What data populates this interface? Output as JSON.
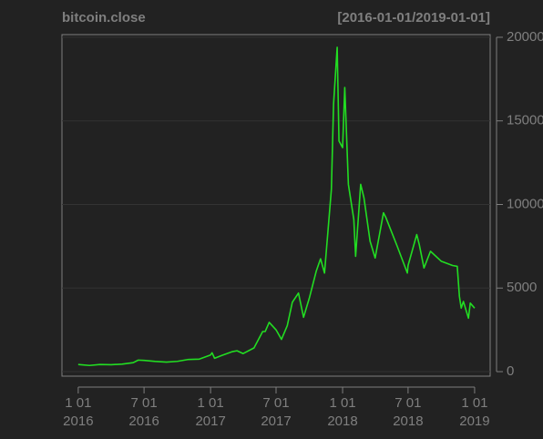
{
  "chart_data": {
    "type": "line",
    "title": "bitcoin.close",
    "subtitle": "[2016-01-01/2019-01-01]",
    "x": [
      "2016-01-01",
      "2016-02-01",
      "2016-03-01",
      "2016-04-01",
      "2016-05-01",
      "2016-06-01",
      "2016-06-15",
      "2016-07-01",
      "2016-08-01",
      "2016-09-01",
      "2016-10-01",
      "2016-11-01",
      "2016-12-01",
      "2017-01-01",
      "2017-01-05",
      "2017-01-12",
      "2017-02-01",
      "2017-03-01",
      "2017-03-15",
      "2017-04-01",
      "2017-05-01",
      "2017-05-25",
      "2017-06-01",
      "2017-06-12",
      "2017-07-01",
      "2017-07-16",
      "2017-08-01",
      "2017-08-15",
      "2017-09-01",
      "2017-09-15",
      "2017-10-01",
      "2017-10-20",
      "2017-11-01",
      "2017-11-12",
      "2017-12-01",
      "2017-12-07",
      "2017-12-17",
      "2017-12-22",
      "2018-01-01",
      "2018-01-07",
      "2018-01-17",
      "2018-02-01",
      "2018-02-06",
      "2018-02-20",
      "2018-03-01",
      "2018-03-18",
      "2018-04-01",
      "2018-04-24",
      "2018-05-01",
      "2018-06-01",
      "2018-06-29",
      "2018-07-01",
      "2018-07-25",
      "2018-08-01",
      "2018-08-14",
      "2018-09-01",
      "2018-10-01",
      "2018-11-01",
      "2018-11-14",
      "2018-11-20",
      "2018-11-25",
      "2018-12-01",
      "2018-12-15",
      "2018-12-20",
      "2019-01-01"
    ],
    "series": [
      {
        "name": "bitcoin.close",
        "color": "#22dd22",
        "values": [
          430,
          370,
          430,
          415,
          450,
          535,
          690,
          675,
          610,
          570,
          615,
          730,
          750,
          1000,
          1130,
          800,
          970,
          1190,
          1250,
          1080,
          1420,
          2400,
          2400,
          2950,
          2500,
          1930,
          2750,
          4150,
          4700,
          3250,
          4400,
          6000,
          6750,
          5900,
          10900,
          16000,
          19400,
          13800,
          13400,
          17000,
          11200,
          9100,
          6900,
          11200,
          10400,
          7800,
          6800,
          9500,
          9200,
          7500,
          5900,
          6350,
          8200,
          7600,
          6200,
          7200,
          6600,
          6350,
          6300,
          4500,
          3800,
          4200,
          3200,
          4100,
          3800
        ]
      }
    ],
    "xlim": [
      "2015-11-17",
      "2019-02-13"
    ],
    "xticks": [
      {
        "value": "2016-01-01",
        "label": "1 01\n2016"
      },
      {
        "value": "2016-07-01",
        "label": "7 01\n2016"
      },
      {
        "value": "2017-01-01",
        "label": "1 01\n2017"
      },
      {
        "value": "2017-07-01",
        "label": "7 01\n2017"
      },
      {
        "value": "2018-01-01",
        "label": "1 01\n2018"
      },
      {
        "value": "2018-07-01",
        "label": "7 01\n2018"
      },
      {
        "value": "2019-01-01",
        "label": "1 01\n2019"
      }
    ],
    "ylim": [
      -270,
      20160
    ],
    "yticks": [
      0,
      5000,
      10000,
      15000,
      20000
    ],
    "grid": true
  }
}
